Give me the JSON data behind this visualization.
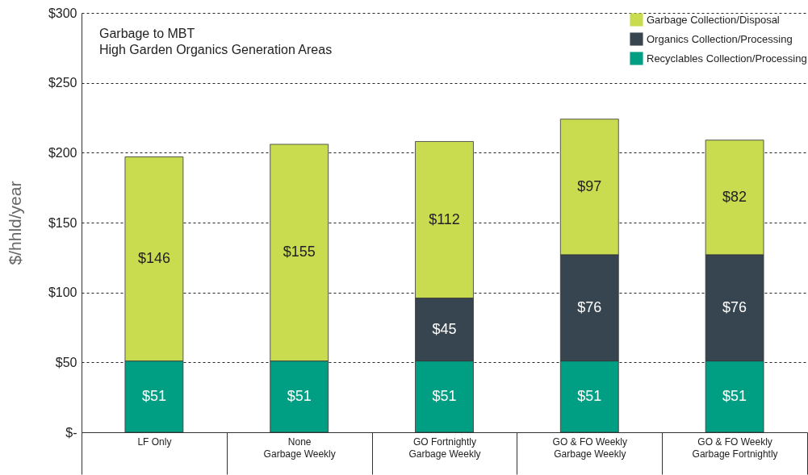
{
  "chart_data": {
    "type": "bar",
    "stacked": true,
    "title": "Garbage to MBT",
    "subtitle": "High Garden Organics Generation Areas",
    "ylabel": "$/hhld/year",
    "categories": [
      "LF Only",
      "None\nGarbage Weekly",
      "GO Fortnightly\nGarbage Weekly",
      "GO & FO Weekly\nGarbage Weekly",
      "GO & FO Weekly\nGarbage Fortnightly"
    ],
    "series": [
      {
        "name": "Recyclables Collection/Processing",
        "color": "#009e82",
        "values": [
          51,
          51,
          51,
          51,
          51
        ],
        "value_labels": [
          "$51",
          "$51",
          "$51",
          "$51",
          "$51"
        ]
      },
      {
        "name": "Organics Collection/Processing",
        "color": "#36454f",
        "values": [
          null,
          null,
          45,
          76,
          76
        ],
        "value_labels": [
          null,
          null,
          "$45",
          "$76",
          "$76"
        ]
      },
      {
        "name": "Garbage Collection/Disposal",
        "color": "#c9dc50",
        "values": [
          146,
          155,
          112,
          97,
          82
        ],
        "value_labels": [
          "$146",
          "$155",
          "$112",
          "$97",
          "$82"
        ]
      }
    ],
    "ylim": [
      0,
      300
    ],
    "yticks": [
      {
        "value": 0,
        "label": "$-"
      },
      {
        "value": 50,
        "label": "$50"
      },
      {
        "value": 100,
        "label": "$100"
      },
      {
        "value": 150,
        "label": "$150"
      },
      {
        "value": 200,
        "label": "$200"
      },
      {
        "value": 250,
        "label": "$250"
      },
      {
        "value": 300,
        "label": "$300"
      }
    ],
    "grid": "y",
    "legend": "top right"
  }
}
